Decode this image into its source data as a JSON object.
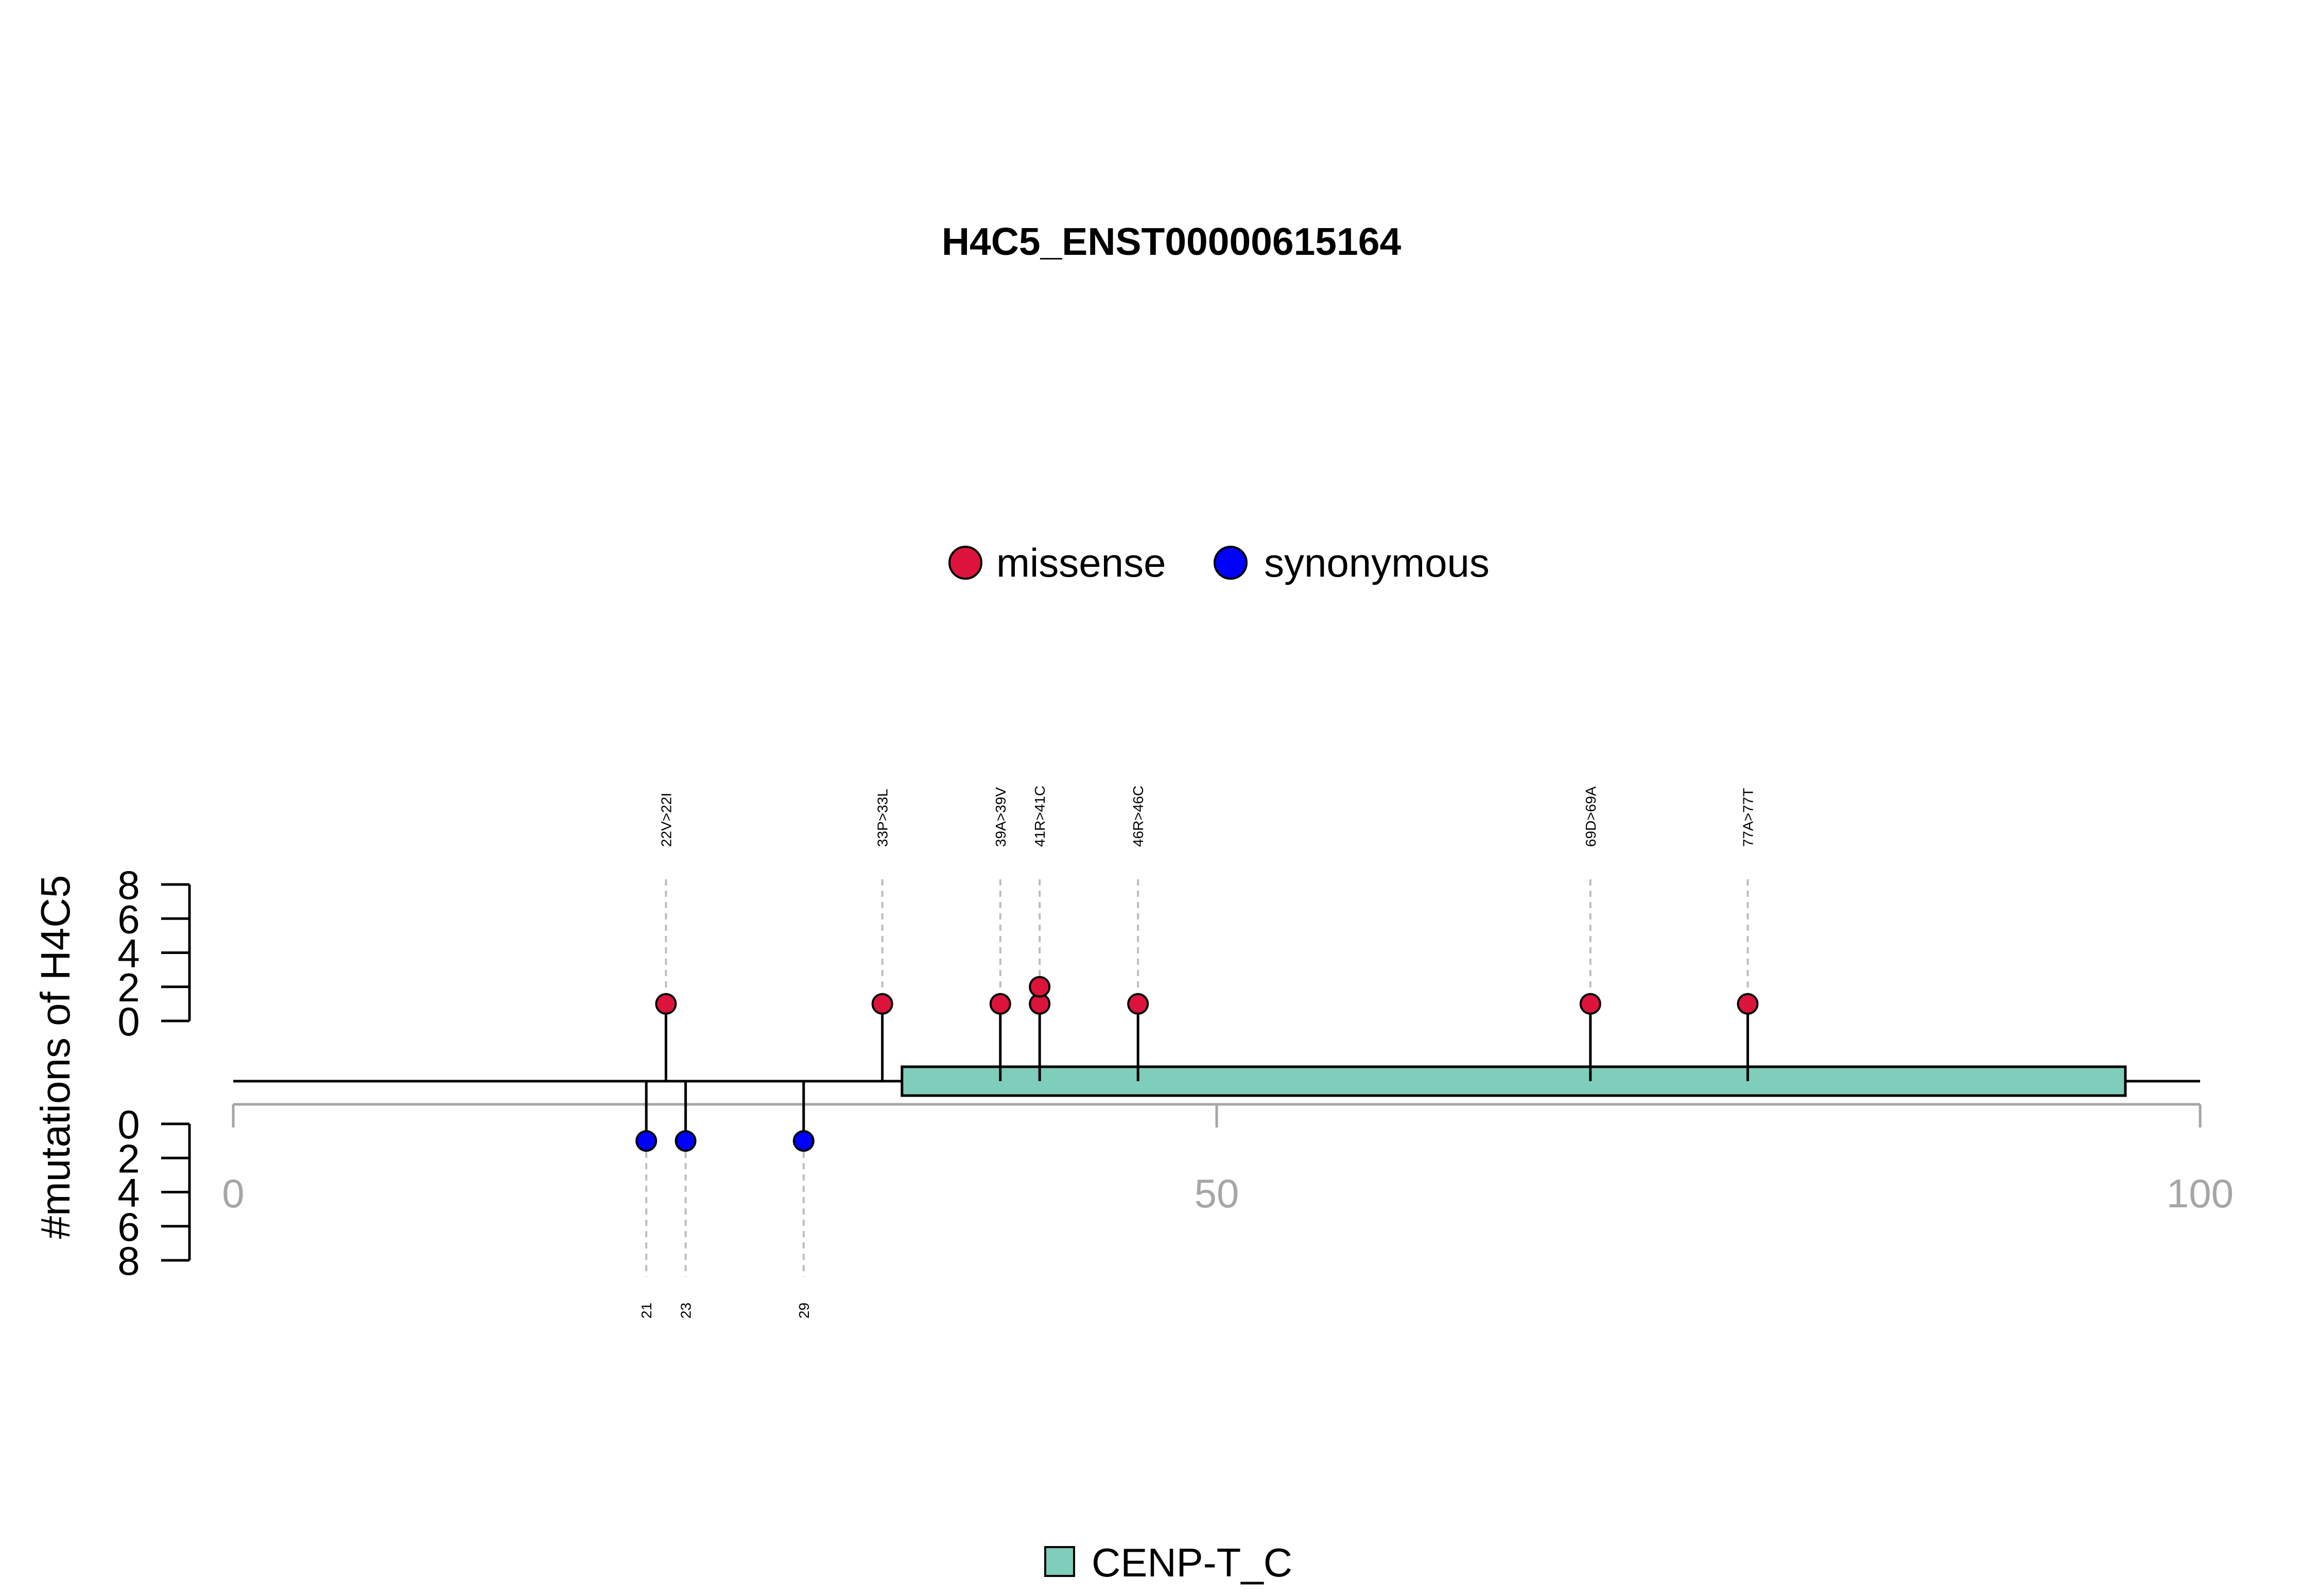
{
  "chart_data": {
    "type": "lollipop",
    "title": "H4C5_ENST00000615164",
    "ylabel": "#mutations of H4C5",
    "xlim": [
      0,
      100
    ],
    "x_ticks": [
      "0",
      "50",
      "100"
    ],
    "y_ticks": [
      "0",
      "2",
      "4",
      "6",
      "8"
    ],
    "ylim": [
      0,
      8
    ],
    "legend": {
      "items": [
        {
          "label": "missense",
          "color": "#DC143C"
        },
        {
          "label": "synonymous",
          "color": "#0000FF"
        }
      ],
      "placement": "top-center"
    },
    "domain_legend": {
      "label": "CENP-T_C",
      "color": "#7FCDBB"
    },
    "domains": [
      {
        "name": "CENP-T_C",
        "start": 34,
        "end": 96.2,
        "color": "#7FCDBB"
      }
    ],
    "protein_length": 100,
    "mutations_above": [
      {
        "position": 22,
        "label": "22V>22I",
        "count": 1,
        "type": "missense"
      },
      {
        "position": 33,
        "label": "33P>33L",
        "count": 1,
        "type": "missense"
      },
      {
        "position": 39,
        "label": "39A>39V",
        "count": 1,
        "type": "missense"
      },
      {
        "position": 41,
        "label": "41R>41C",
        "count": 2,
        "type": "missense"
      },
      {
        "position": 46,
        "label": "46R>46C",
        "count": 1,
        "type": "missense"
      },
      {
        "position": 69,
        "label": "69D>69A",
        "count": 1,
        "type": "missense"
      },
      {
        "position": 77,
        "label": "77A>77T",
        "count": 1,
        "type": "missense"
      }
    ],
    "mutations_below": [
      {
        "position": 21,
        "label": "21",
        "count": 1,
        "type": "synonymous"
      },
      {
        "position": 23,
        "label": "23",
        "count": 1,
        "type": "synonymous"
      },
      {
        "position": 29,
        "label": "29",
        "count": 1,
        "type": "synonymous"
      }
    ],
    "colors": {
      "missense": "#DC143C",
      "synonymous": "#0000FF",
      "domain": "#7FCDBB",
      "axis_gray": "#a6a6a6"
    }
  }
}
